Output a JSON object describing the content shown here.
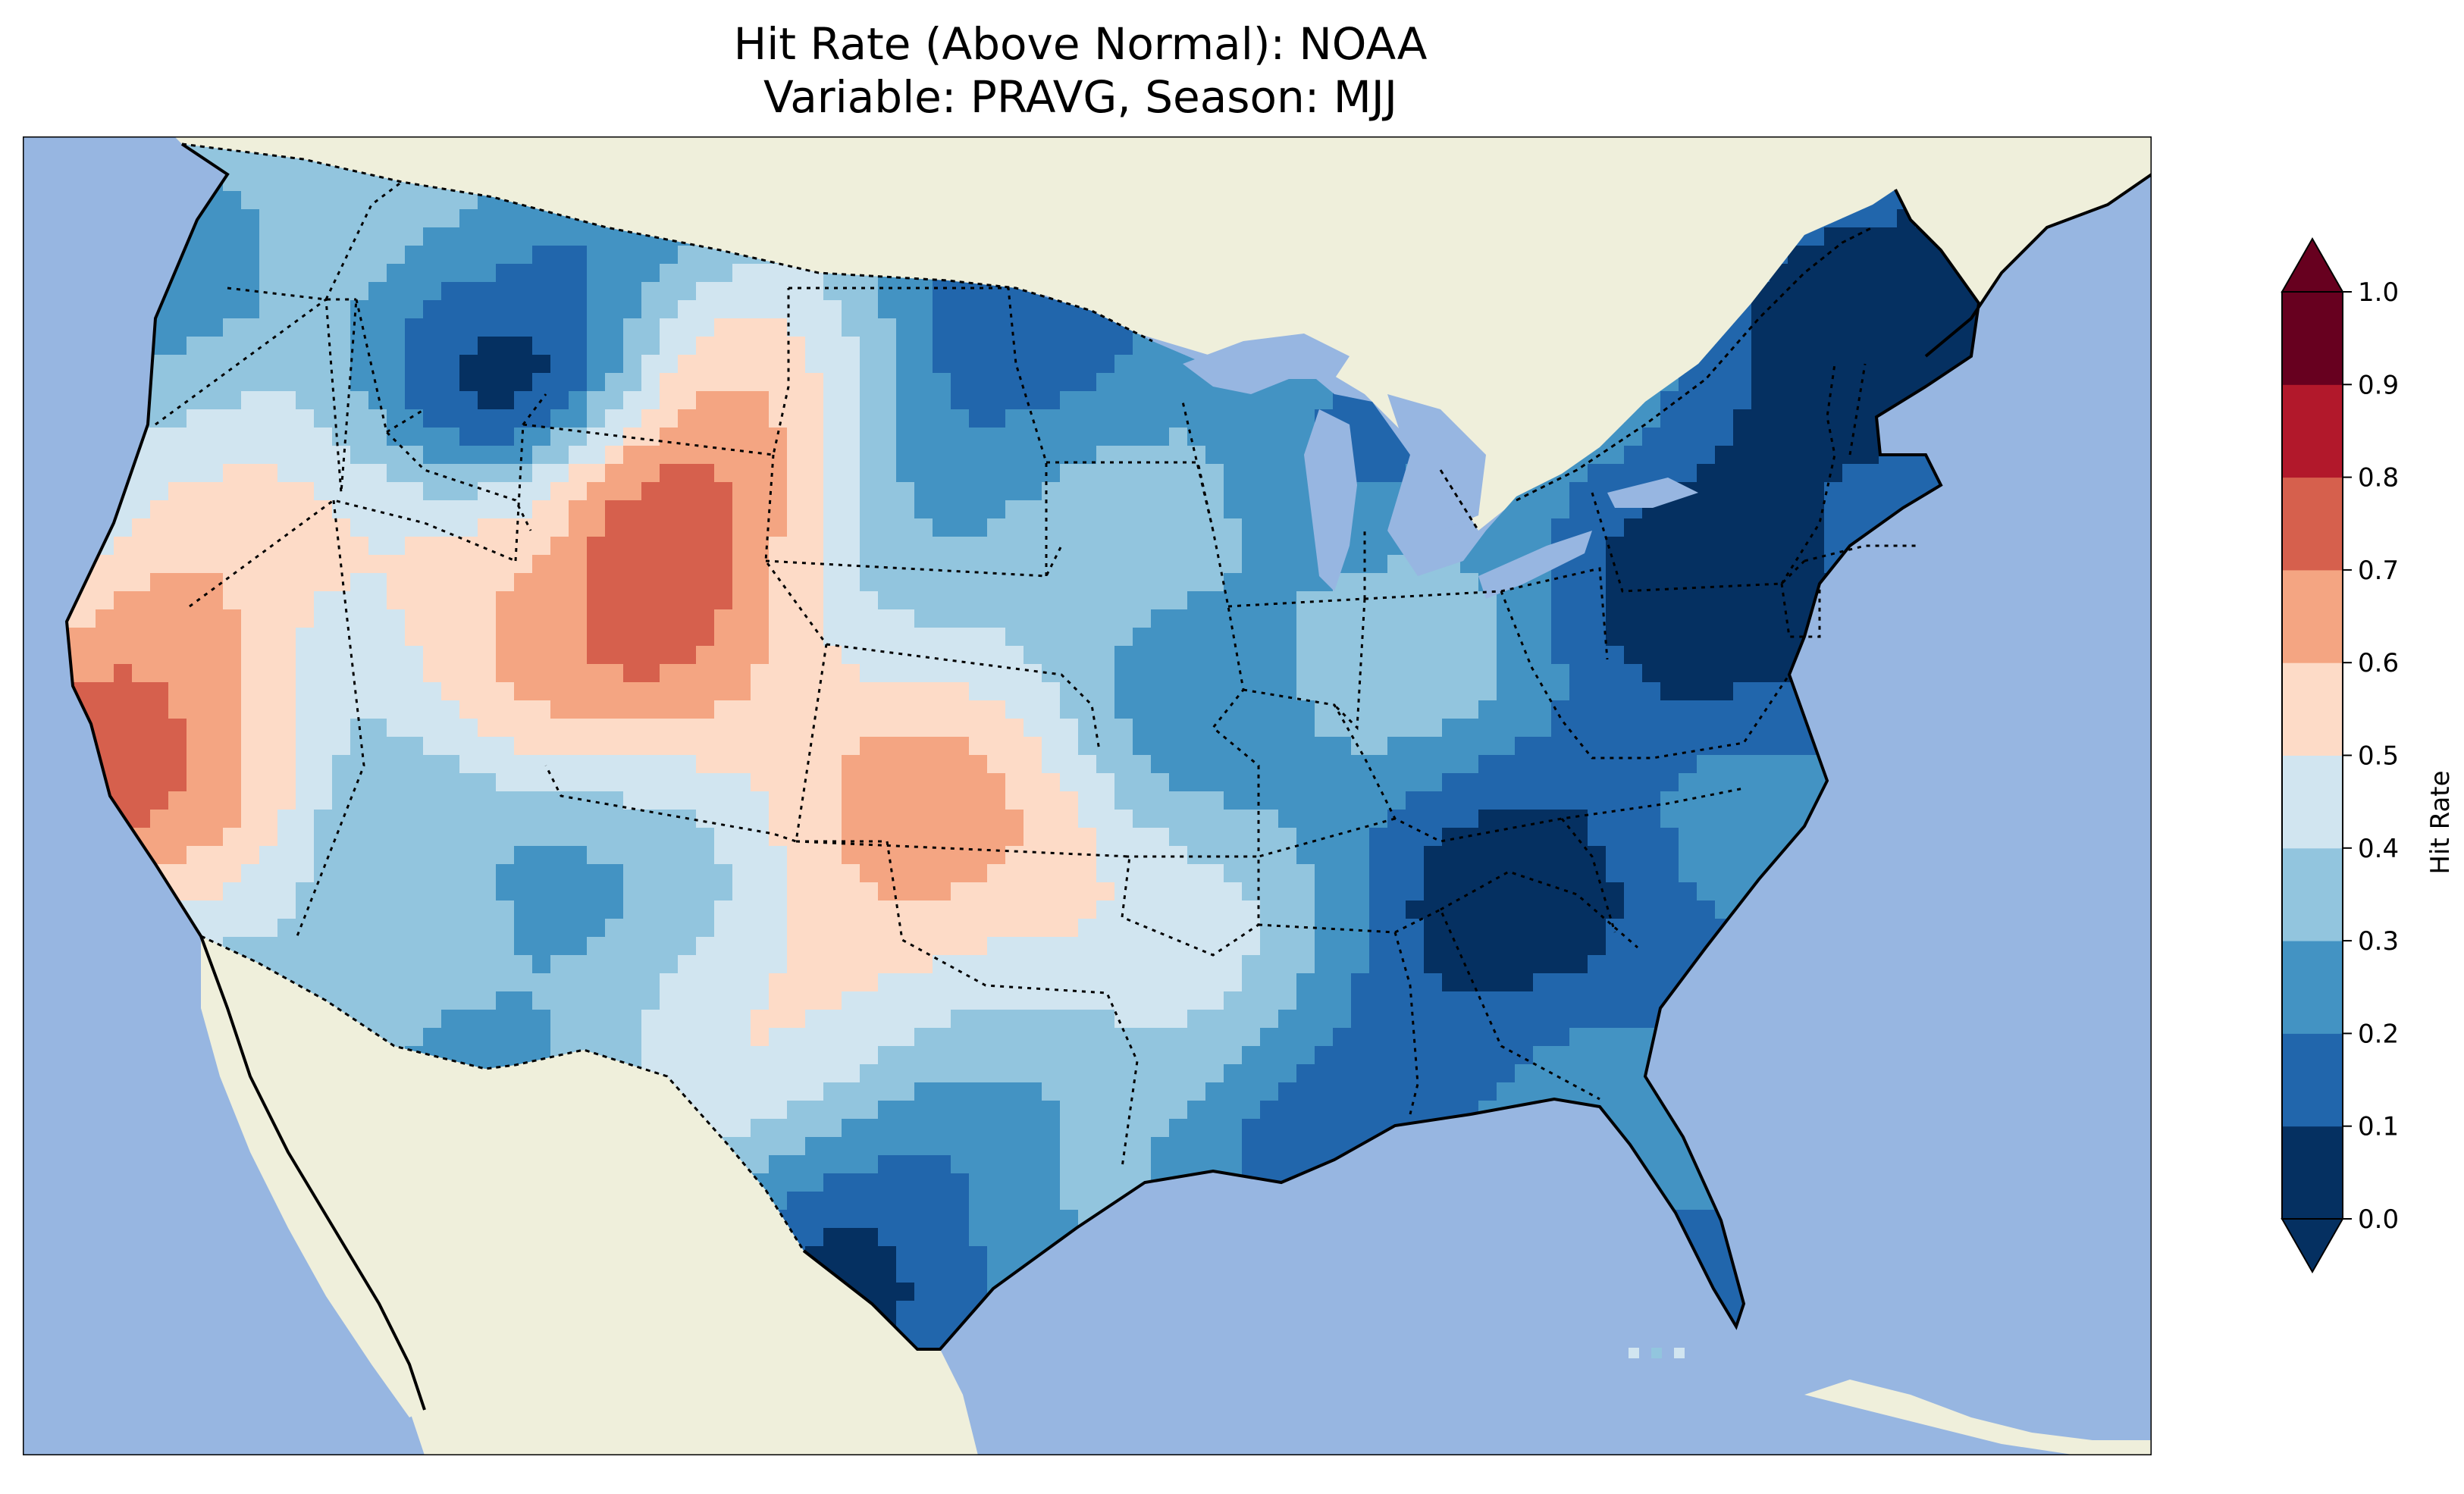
{
  "title": {
    "line1": "Hit Rate (Above Normal): NOAA",
    "line2": "Variable: PRAVG, Season: MJJ"
  },
  "colors": {
    "ocean": "#97b6e1",
    "land": "#efefdb",
    "border": "#000000"
  },
  "colorbar": {
    "label": "Hit Rate",
    "ticks": [
      "0.0",
      "0.1",
      "0.2",
      "0.3",
      "0.4",
      "0.5",
      "0.6",
      "0.7",
      "0.8",
      "0.9",
      "1.0"
    ],
    "bins": [
      {
        "range": [
          0.0,
          0.1
        ],
        "color": "#053061"
      },
      {
        "range": [
          0.1,
          0.2
        ],
        "color": "#2166ac"
      },
      {
        "range": [
          0.2,
          0.3
        ],
        "color": "#4393c3"
      },
      {
        "range": [
          0.3,
          0.4
        ],
        "color": "#92c5de"
      },
      {
        "range": [
          0.4,
          0.5
        ],
        "color": "#d1e5f0"
      },
      {
        "range": [
          0.5,
          0.6
        ],
        "color": "#fddbc7"
      },
      {
        "range": [
          0.6,
          0.7
        ],
        "color": "#f4a582"
      },
      {
        "range": [
          0.7,
          0.8
        ],
        "color": "#d6604d"
      },
      {
        "range": [
          0.8,
          0.9
        ],
        "color": "#b2182b"
      },
      {
        "range": [
          0.9,
          1.0
        ],
        "color": "#67001f"
      }
    ],
    "extend": "both"
  },
  "map": {
    "region": "CONUS",
    "field_regions": [
      {
        "area": "Pacific Northwest coast",
        "value": 0.35
      },
      {
        "area": "Northern Idaho / Western Montana",
        "value": 0.15
      },
      {
        "area": "Northern Great Plains / Minnesota",
        "value": 0.2
      },
      {
        "area": "Great Basin / Wyoming",
        "value": 0.55
      },
      {
        "area": "Colorado / Wyoming core",
        "value": 0.75
      },
      {
        "area": "Central California",
        "value": 0.68
      },
      {
        "area": "Arizona / New Mexico",
        "value": 0.25
      },
      {
        "area": "Southern Plains / Texas panhandle",
        "value": 0.58
      },
      {
        "area": "Upper Midwest",
        "value": 0.3
      },
      {
        "area": "Southeast US",
        "value": 0.12
      },
      {
        "area": "Florida",
        "value": 0.22
      },
      {
        "area": "Northeast / New England",
        "value": 0.08
      },
      {
        "area": "South Texas coast",
        "value": 0.15
      }
    ]
  }
}
